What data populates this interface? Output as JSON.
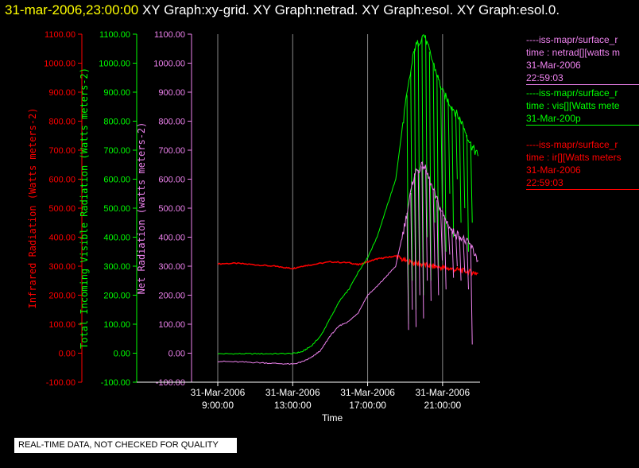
{
  "title": {
    "time": "31-mar-2006,23:00:00",
    "rest": "XY Graph:xy-grid.  XY Graph:netrad.  XY Graph:esol.  XY Graph:esol.0."
  },
  "colors": {
    "ir": "#ff0000",
    "vis": "#00ff00",
    "net": "#ee82ee",
    "axis": "#ffffff",
    "grid": "#ffffff"
  },
  "legend": [
    {
      "color": "#ee82ee",
      "lines": [
        "----iss-mapr/surface_r",
        "time : netrad[][watts m",
        "31-Mar-2006",
        "22:59:03"
      ]
    },
    {
      "color": "#00ff00",
      "lines": [
        "----iss-mapr/surface_r",
        "time : vis[][Watts mete",
        "31-Mar-200p"
      ]
    },
    {
      "color": "#ff0000",
      "lines": [
        "----iss-mapr/surface_r",
        "time : ir[][Watts meters",
        "31-Mar-2006",
        "22:59:03"
      ]
    }
  ],
  "warning": "REAL-TIME DATA, NOT CHECKED FOR QUALITY",
  "chart_data": {
    "type": "line",
    "xlabel": "Time",
    "x_ticks": [
      {
        "hour": 9,
        "line1": "31-Mar-2006",
        "line2": "9:00:00"
      },
      {
        "hour": 13,
        "line1": "31-Mar-2006",
        "line2": "13:00:00"
      },
      {
        "hour": 17,
        "line1": "31-Mar-2006",
        "line2": "17:00:00"
      },
      {
        "hour": 21,
        "line1": "31-Mar-2006",
        "line2": "21:00:00"
      }
    ],
    "x_range_hours": [
      7.6,
      23.0
    ],
    "ylim": [
      -100,
      1100
    ],
    "y_ticks": [
      -100,
      0,
      100,
      200,
      300,
      400,
      500,
      600,
      700,
      800,
      900,
      1000,
      1100
    ],
    "axes": [
      {
        "id": "ir",
        "label": "Infrared Radiation (Watts meters-2)",
        "color": "#ff0000",
        "ticks": [
          "1100.00",
          "1000.00",
          "900.00",
          "800.00",
          "700.00",
          "600.00",
          "500.00",
          "400.00",
          "300.00",
          "200.00",
          "100.00",
          "0.00",
          "-100.00"
        ]
      },
      {
        "id": "vis",
        "label": "Total Incoming Visible Radiation (Watts meters-2)",
        "color": "#00ff00",
        "ticks": [
          "1100.00",
          "1000.00",
          "900.00",
          "800.00",
          "700.00",
          "600.00",
          "500.00",
          "400.00",
          "300.00",
          "200.00",
          "100.00",
          "0.00",
          "-100.00"
        ]
      },
      {
        "id": "net",
        "label": "Net Radiation (watts meters-2)",
        "color": "#ee82ee",
        "ticks": [
          "1100.00",
          "1000.00",
          "900.00",
          "800.00",
          "700.00",
          "600.00",
          "500.00",
          "400.00",
          "300.00",
          "200.00",
          "100.00",
          "0.00",
          "-100.00"
        ]
      }
    ],
    "series": [
      {
        "id": "ir",
        "color": "#ff0000",
        "x": [
          9.0,
          10.0,
          11.0,
          12.0,
          12.5,
          13.0,
          13.5,
          14.0,
          15.0,
          16.0,
          16.5,
          17.0,
          17.5,
          18.0,
          18.5,
          19.0,
          19.5,
          20.0,
          20.5,
          21.0,
          21.5,
          22.0,
          22.5,
          22.9
        ],
        "y": [
          308,
          310,
          305,
          300,
          296,
          292,
          300,
          305,
          315,
          312,
          305,
          315,
          325,
          330,
          335,
          318,
          310,
          305,
          300,
          295,
          290,
          285,
          280,
          275
        ]
      },
      {
        "id": "vis",
        "color": "#00ff00",
        "x": [
          9.0,
          10.0,
          11.0,
          12.0,
          13.0,
          13.5,
          14.0,
          14.5,
          15.0,
          15.5,
          16.0,
          16.5,
          17.0,
          17.5,
          18.0,
          18.5,
          19.0,
          19.5,
          20.0,
          20.5,
          21.0,
          21.5,
          22.0,
          22.5,
          22.9
        ],
        "y": [
          -2,
          -2,
          -2,
          -2,
          -1,
          5,
          25,
          60,
          120,
          180,
          220,
          280,
          330,
          400,
          500,
          600,
          850,
          1050,
          1100,
          1000,
          900,
          850,
          800,
          720,
          680
        ],
        "spikes": [
          [
            19.1,
            100
          ],
          [
            19.3,
            250
          ],
          [
            19.5,
            150
          ],
          [
            19.7,
            300
          ],
          [
            19.9,
            200
          ],
          [
            20.1,
            400
          ],
          [
            20.3,
            250
          ],
          [
            20.5,
            450
          ],
          [
            20.7,
            300
          ],
          [
            20.9,
            500
          ],
          [
            21.1,
            350
          ],
          [
            21.3,
            550
          ],
          [
            21.5,
            400
          ],
          [
            21.7,
            600
          ],
          [
            21.9,
            450
          ],
          [
            22.1,
            500
          ],
          [
            22.3,
            350
          ],
          [
            22.5,
            450
          ]
        ]
      },
      {
        "id": "net",
        "color": "#ee82ee",
        "x": [
          9.0,
          10.0,
          11.0,
          12.0,
          13.0,
          13.5,
          14.0,
          14.5,
          15.0,
          15.5,
          16.0,
          16.5,
          17.0,
          17.5,
          18.0,
          18.5,
          19.0,
          19.5,
          20.0,
          20.5,
          21.0,
          21.5,
          22.0,
          22.5,
          22.9
        ],
        "y": [
          -28,
          -30,
          -32,
          -35,
          -38,
          -30,
          -15,
          10,
          60,
          95,
          110,
          140,
          200,
          230,
          265,
          300,
          450,
          620,
          650,
          560,
          480,
          420,
          400,
          370,
          320
        ],
        "spikes": [
          [
            19.1,
            80
          ],
          [
            19.3,
            150
          ],
          [
            19.5,
            90
          ],
          [
            19.7,
            200
          ],
          [
            19.9,
            120
          ],
          [
            20.1,
            250
          ],
          [
            20.3,
            180
          ],
          [
            20.5,
            300
          ],
          [
            20.7,
            200
          ],
          [
            20.9,
            320
          ],
          [
            21.1,
            220
          ],
          [
            21.3,
            340
          ],
          [
            21.5,
            260
          ],
          [
            21.7,
            300
          ],
          [
            21.9,
            250
          ],
          [
            22.1,
            280
          ],
          [
            22.3,
            220
          ],
          [
            22.5,
            30
          ]
        ]
      }
    ]
  }
}
